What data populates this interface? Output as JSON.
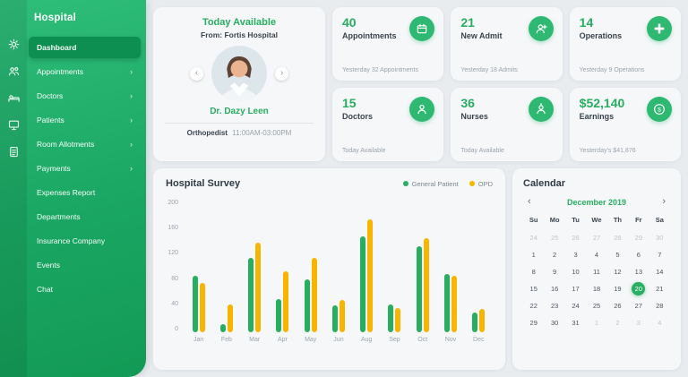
{
  "app": {
    "title": "Hospital"
  },
  "icons": {
    "prev": "‹",
    "next": "›",
    "menu_arrow": "›"
  },
  "sidebar": {
    "rail_icons": [
      "gear-icon",
      "users-icon",
      "patient-icon",
      "monitor-icon",
      "document-icon"
    ],
    "items": [
      {
        "label": "Dashboard",
        "active": true,
        "arrow": false
      },
      {
        "label": "Appointments",
        "active": false,
        "arrow": true
      },
      {
        "label": "Doctors",
        "active": false,
        "arrow": true
      },
      {
        "label": "Patients",
        "active": false,
        "arrow": true
      },
      {
        "label": "Room Allotments",
        "active": false,
        "arrow": true
      },
      {
        "label": "Payments",
        "active": false,
        "arrow": true
      },
      {
        "label": "Expenses Report",
        "active": false,
        "arrow": false
      },
      {
        "label": "Departments",
        "active": false,
        "arrow": false
      },
      {
        "label": "Insurance Company",
        "active": false,
        "arrow": false
      },
      {
        "label": "Events",
        "active": false,
        "arrow": false
      },
      {
        "label": "Chat",
        "active": false,
        "arrow": false
      }
    ]
  },
  "doctor_card": {
    "title": "Today Available",
    "subtitle": "From: Fortis Hospital",
    "name": "Dr. Dazy Leen",
    "role": "Orthopedist",
    "time": "11:00AM-03:00PM"
  },
  "stats": [
    {
      "value": "40",
      "label": "Appointments",
      "sub": "Yesterday 32 Appointments",
      "icon": "calendar-icon"
    },
    {
      "value": "21",
      "label": "New Admit",
      "sub": "Yesterday 18 Admits",
      "icon": "new-admit-icon"
    },
    {
      "value": "14",
      "label": "Operations",
      "sub": "Yesterday 9 Operations",
      "icon": "operation-icon"
    },
    {
      "value": "15",
      "label": "Doctors",
      "sub": "Today Available",
      "icon": "doctor-icon"
    },
    {
      "value": "36",
      "label": "Nurses",
      "sub": "Today Available",
      "icon": "nurse-icon"
    },
    {
      "value": "$52,140",
      "label": "Earnings",
      "sub": "Yesterday's $41,876",
      "icon": "earnings-icon"
    }
  ],
  "survey": {
    "title": "Hospital Survey",
    "legend": [
      {
        "label": "General Patient",
        "color": "#27ae60"
      },
      {
        "label": "OPD",
        "color": "#f7b500"
      }
    ]
  },
  "chart_data": {
    "type": "bar",
    "title": "Hospital Survey",
    "categories": [
      "Jan",
      "Feb",
      "Mar",
      "Apr",
      "May",
      "Jun",
      "Aug",
      "Sep",
      "Oct",
      "Nov",
      "Dec"
    ],
    "series": [
      {
        "name": "General Patient",
        "color": "#27ae60",
        "values": [
          85,
          12,
          112,
          50,
          80,
          40,
          145,
          42,
          130,
          88,
          30
        ]
      },
      {
        "name": "OPD",
        "color": "#f7b500",
        "values": [
          75,
          42,
          135,
          92,
          112,
          48,
          170,
          36,
          142,
          85,
          35
        ]
      }
    ],
    "ylim": [
      0,
      200
    ],
    "yticks": [
      0,
      40,
      80,
      120,
      160,
      200
    ],
    "xlabel": "",
    "ylabel": "",
    "legend_position": "top-right",
    "grid": false
  },
  "calendar": {
    "title": "Calendar",
    "month": "December 2019",
    "weekdays": [
      "Su",
      "Mo",
      "Tu",
      "We",
      "Th",
      "Fr",
      "Sa"
    ],
    "days": [
      {
        "d": "24",
        "muted": true
      },
      {
        "d": "25",
        "muted": true
      },
      {
        "d": "26",
        "muted": true
      },
      {
        "d": "27",
        "muted": true
      },
      {
        "d": "28",
        "muted": true
      },
      {
        "d": "29",
        "muted": true
      },
      {
        "d": "30",
        "muted": true
      },
      {
        "d": "1"
      },
      {
        "d": "2"
      },
      {
        "d": "3"
      },
      {
        "d": "4"
      },
      {
        "d": "5"
      },
      {
        "d": "6"
      },
      {
        "d": "7"
      },
      {
        "d": "8"
      },
      {
        "d": "9"
      },
      {
        "d": "10"
      },
      {
        "d": "11"
      },
      {
        "d": "12"
      },
      {
        "d": "13"
      },
      {
        "d": "14"
      },
      {
        "d": "15"
      },
      {
        "d": "16"
      },
      {
        "d": "17"
      },
      {
        "d": "18"
      },
      {
        "d": "19"
      },
      {
        "d": "20",
        "selected": true
      },
      {
        "d": "21"
      },
      {
        "d": "22"
      },
      {
        "d": "23"
      },
      {
        "d": "24"
      },
      {
        "d": "25"
      },
      {
        "d": "26"
      },
      {
        "d": "27"
      },
      {
        "d": "28"
      },
      {
        "d": "29"
      },
      {
        "d": "30"
      },
      {
        "d": "31"
      },
      {
        "d": "1",
        "muted": true
      },
      {
        "d": "2",
        "muted": true
      },
      {
        "d": "3",
        "muted": true
      },
      {
        "d": "4",
        "muted": true
      }
    ]
  }
}
